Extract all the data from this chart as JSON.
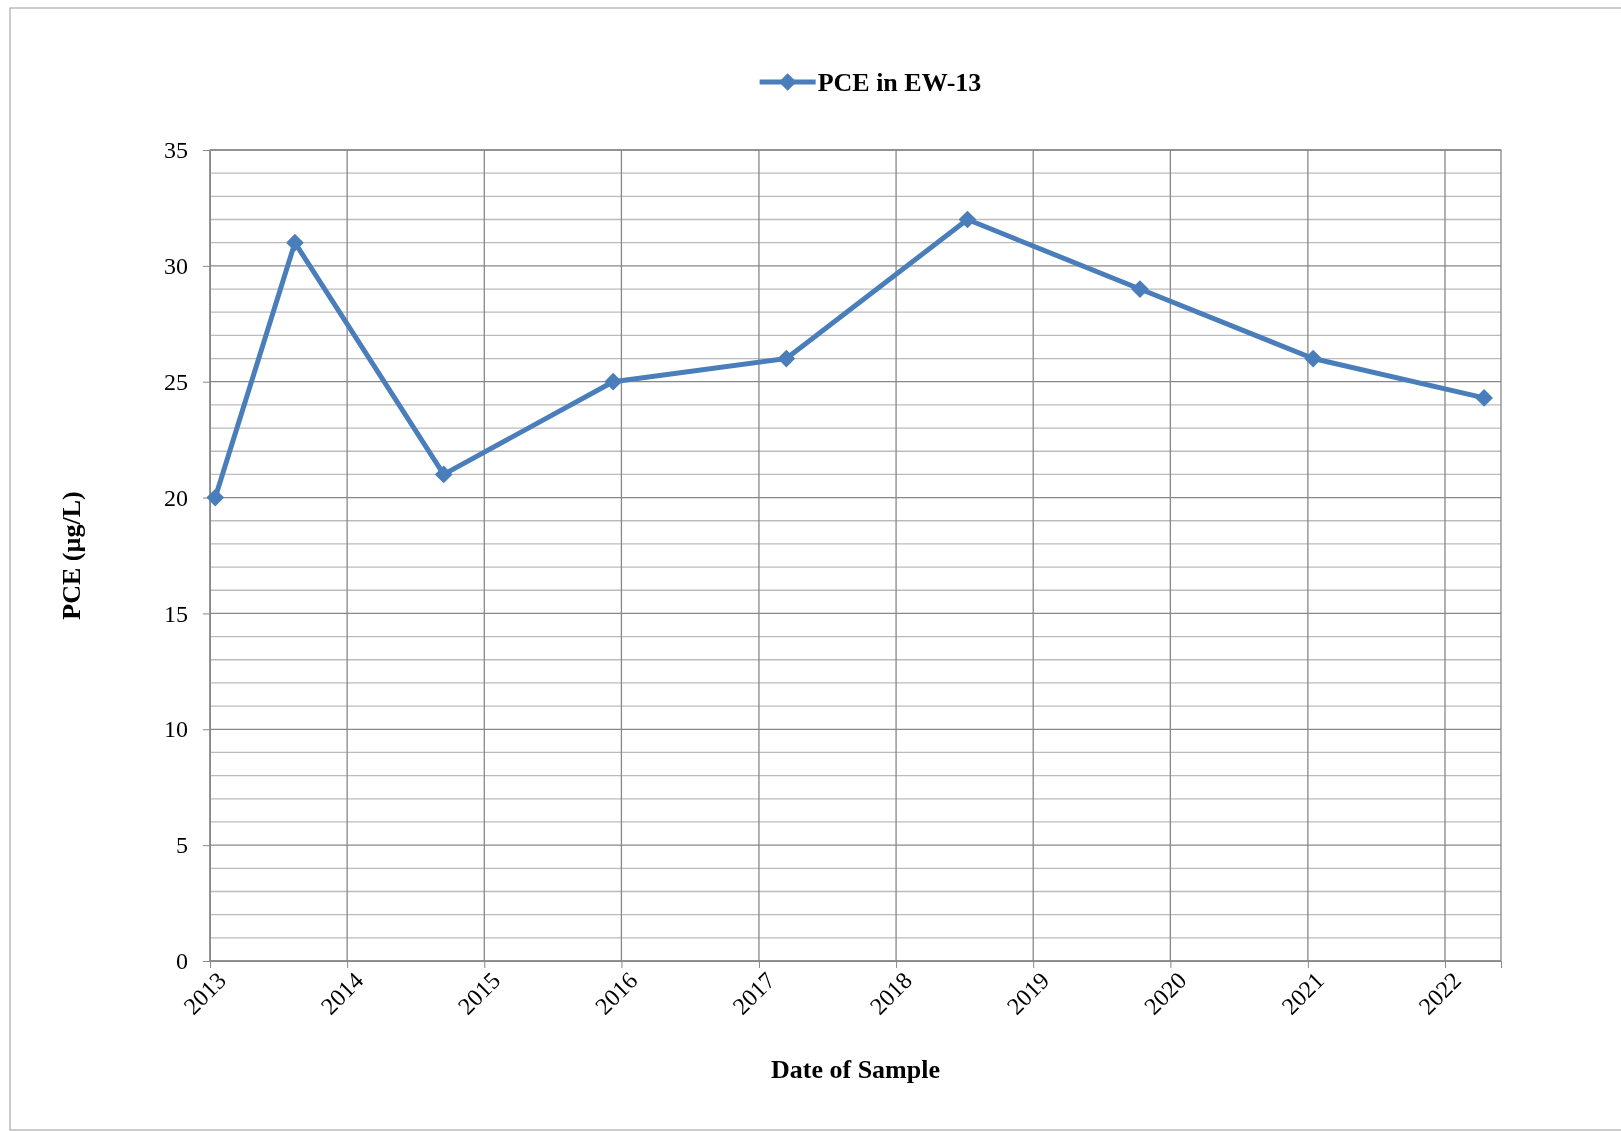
{
  "chart_data": {
    "type": "line",
    "xlabel": "Date of Sample",
    "ylabel": "PCE (µg/L)",
    "x": [
      "2013-01-15",
      "2013-08-15",
      "2014-09-15",
      "2015-12-10",
      "2017-03-15",
      "2018-07-10",
      "2019-10-12",
      "2021-01-15",
      "2022-04-15"
    ],
    "series": [
      {
        "name": "PCE in EW-13",
        "color": "#4a7ebb",
        "values": [
          20,
          31,
          21,
          25,
          26,
          32,
          29,
          26,
          24.3
        ]
      }
    ],
    "xlim": [
      "2013-01-01",
      "2022-05-30"
    ],
    "xticks": [
      {
        "value": "2013-01-01",
        "label": "2013"
      },
      {
        "value": "2014-01-01",
        "label": "2014"
      },
      {
        "value": "2015-01-01",
        "label": "2015"
      },
      {
        "value": "2016-01-01",
        "label": "2016"
      },
      {
        "value": "2017-01-01",
        "label": "2017"
      },
      {
        "value": "2018-01-01",
        "label": "2018"
      },
      {
        "value": "2019-01-01",
        "label": "2019"
      },
      {
        "value": "2020-01-01",
        "label": "2020"
      },
      {
        "value": "2021-01-01",
        "label": "2021"
      },
      {
        "value": "2022-01-01",
        "label": "2022"
      }
    ],
    "ylim": [
      0,
      35
    ],
    "yticks": [
      0,
      {
        "value": 1,
        "label": null
      },
      {
        "value": 2,
        "label": null
      },
      {
        "value": 3,
        "label": null
      },
      {
        "value": 4,
        "label": null
      },
      5,
      {
        "value": 6,
        "label": null
      },
      {
        "value": 7,
        "label": null
      },
      {
        "value": 8,
        "label": null
      },
      {
        "value": 9,
        "label": null
      },
      10,
      {
        "value": 11,
        "label": null
      },
      {
        "value": 12,
        "label": null
      },
      {
        "value": 13,
        "label": null
      },
      {
        "value": 14,
        "label": null
      },
      15,
      {
        "value": 16,
        "label": null
      },
      {
        "value": 17,
        "label": null
      },
      {
        "value": 18,
        "label": null
      },
      {
        "value": 19,
        "label": null
      },
      20,
      {
        "value": 21,
        "label": null
      },
      {
        "value": 22,
        "label": null
      },
      {
        "value": 23,
        "label": null
      },
      {
        "value": 24,
        "label": null
      },
      25,
      {
        "value": 26,
        "label": null
      },
      {
        "value": 27,
        "label": null
      },
      {
        "value": 28,
        "label": null
      },
      {
        "value": 29,
        "label": null
      },
      30,
      {
        "value": 31,
        "label": null
      },
      {
        "value": 32,
        "label": null
      },
      {
        "value": 33,
        "label": null
      },
      {
        "value": 34,
        "label": null
      },
      35
    ],
    "grid": true,
    "legend": "top",
    "marker": "diamond",
    "line_style": "solid"
  }
}
